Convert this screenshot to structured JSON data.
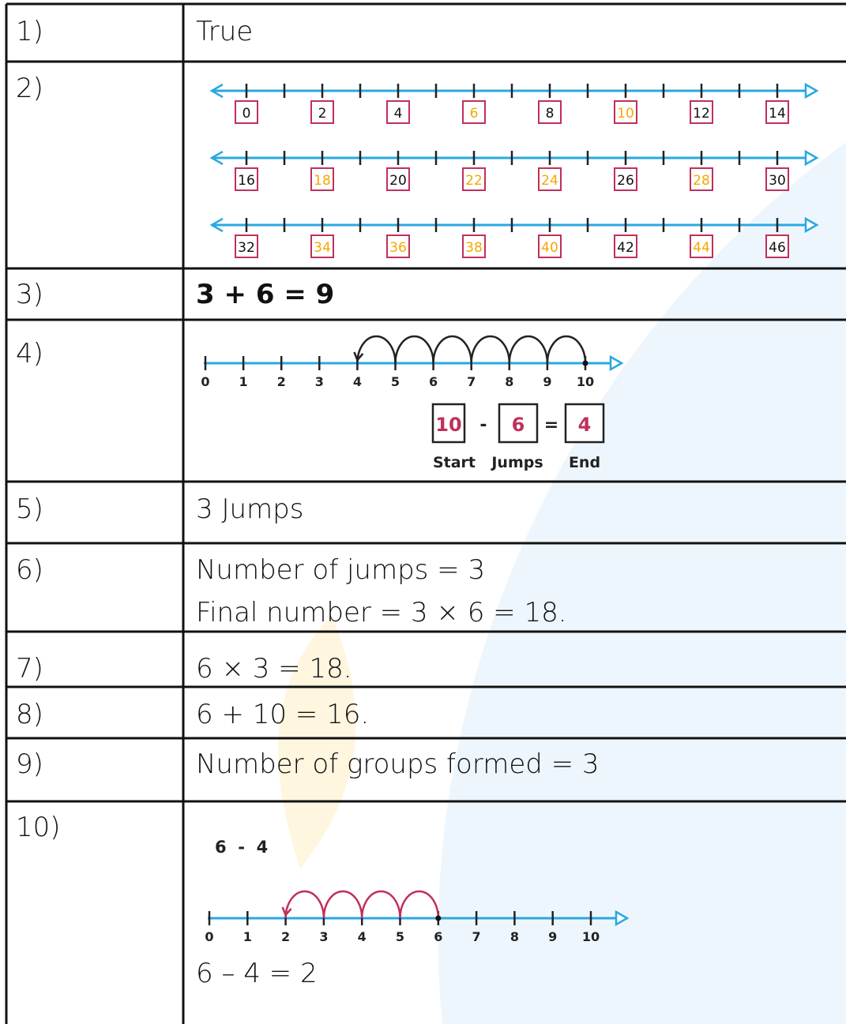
{
  "rows": [
    {
      "number": "1)",
      "text": "True"
    },
    {
      "number": "2)",
      "highlight_color": "#f5a800",
      "number_lines": [
        [
          {
            "label": "0",
            "highlight": false
          },
          {
            "label": "2",
            "highlight": false
          },
          {
            "label": "4",
            "highlight": false
          },
          {
            "label": "6",
            "highlight": true
          },
          {
            "label": "8",
            "highlight": false
          },
          {
            "label": "10",
            "highlight": true
          },
          {
            "label": "12",
            "highlight": false
          },
          {
            "label": "14",
            "highlight": false
          }
        ],
        [
          {
            "label": "16",
            "highlight": false
          },
          {
            "label": "18",
            "highlight": true
          },
          {
            "label": "20",
            "highlight": false
          },
          {
            "label": "22",
            "highlight": true
          },
          {
            "label": "24",
            "highlight": true
          },
          {
            "label": "26",
            "highlight": false
          },
          {
            "label": "28",
            "highlight": true
          },
          {
            "label": "30",
            "highlight": false
          }
        ],
        [
          {
            "label": "32",
            "highlight": false
          },
          {
            "label": "34",
            "highlight": true
          },
          {
            "label": "36",
            "highlight": true
          },
          {
            "label": "38",
            "highlight": true
          },
          {
            "label": "40",
            "highlight": true
          },
          {
            "label": "42",
            "highlight": false
          },
          {
            "label": "44",
            "highlight": true
          },
          {
            "label": "46",
            "highlight": false
          }
        ]
      ]
    },
    {
      "number": "3)",
      "text": "3 + 6 = 9"
    },
    {
      "number": "4)",
      "ticks": [
        "0",
        "1",
        "2",
        "3",
        "4",
        "5",
        "6",
        "7",
        "8",
        "9",
        "10"
      ],
      "jumps": {
        "from": 10,
        "to": 4
      },
      "boxes": [
        "10",
        "6",
        "4"
      ],
      "operators": [
        "-",
        "="
      ],
      "box_labels": [
        "Start",
        "Jumps",
        "End"
      ]
    },
    {
      "number": "5)",
      "text": "3 Jumps"
    },
    {
      "number": "6)",
      "lines": [
        "Number of jumps = 3",
        "Final number = 3 × 6 = 18."
      ]
    },
    {
      "number": "7)",
      "text": "6 × 3 = 18."
    },
    {
      "number": "8)",
      "text": "6 + 10 = 16."
    },
    {
      "number": "9)",
      "text": "Number of groups formed = 3"
    },
    {
      "number": "10)",
      "expression": "6  -  4",
      "ticks": [
        "0",
        "1",
        "2",
        "3",
        "4",
        "5",
        "6",
        "7",
        "8",
        "9",
        "10"
      ],
      "jumps": {
        "from": 6,
        "to": 2
      },
      "text": "6 – 4 = 2"
    }
  ]
}
